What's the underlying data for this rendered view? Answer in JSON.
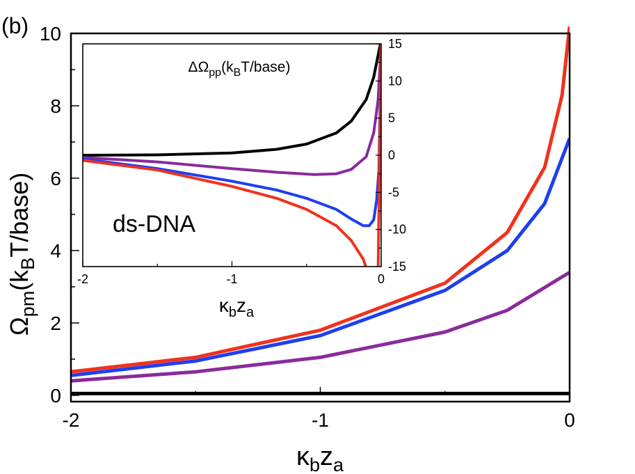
{
  "panel_label": "(b)",
  "annotation": "ds-DNA",
  "chart_data": [
    {
      "type": "line",
      "xlabel": {
        "base1": "κ",
        "sub1": "b",
        "base2": "z",
        "sub2": "a"
      },
      "ylabel": {
        "base": "Ω",
        "sub1": "pm",
        "mid": "(k",
        "sub2": "B",
        "end": "T/base)"
      },
      "xlim": [
        -2,
        0
      ],
      "ylim": [
        0,
        10
      ],
      "xticks": [
        "-2",
        "-1",
        "0"
      ],
      "yticks": [
        "0",
        "2",
        "4",
        "6",
        "8",
        "10"
      ],
      "grid": false,
      "series": [
        {
          "color": "#000000",
          "x": [
            -2,
            -1.5,
            -1,
            -0.5,
            0
          ],
          "y": [
            0.05,
            0.05,
            0.05,
            0.05,
            0.05
          ]
        },
        {
          "color": "#8b2a9c",
          "x": [
            -2,
            -1.5,
            -1,
            -0.5,
            -0.25,
            0
          ],
          "y": [
            0.4,
            0.65,
            1.05,
            1.75,
            2.35,
            3.4
          ]
        },
        {
          "color": "#1e3ff0",
          "x": [
            -2,
            -1.5,
            -1,
            -0.5,
            -0.25,
            -0.1,
            0
          ],
          "y": [
            0.55,
            0.95,
            1.65,
            2.9,
            4.0,
            5.3,
            7.1
          ]
        },
        {
          "color": "#f0321e",
          "x": [
            -2,
            -1.5,
            -1,
            -0.5,
            -0.25,
            -0.1,
            -0.03,
            0
          ],
          "y": [
            0.65,
            1.05,
            1.8,
            3.1,
            4.5,
            6.3,
            8.3,
            10.2
          ]
        }
      ]
    },
    {
      "type": "line",
      "title": {
        "pre": "ΔΩ",
        "sub1": "pp",
        "mid": "(k",
        "sub2": "B",
        "end": "T/base)"
      },
      "xlabel": {
        "base1": "κ",
        "sub1": "b",
        "base2": "z",
        "sub2": "a"
      },
      "xlim": [
        -2,
        0
      ],
      "ylim": [
        -15,
        15
      ],
      "xticks": [
        "-2",
        "-1",
        "0"
      ],
      "yticks": [
        "-15",
        "-10",
        "-5",
        "0",
        "5",
        "10",
        "15"
      ],
      "grid": false,
      "series": [
        {
          "color": "#000000",
          "x": [
            -2,
            -1.5,
            -1,
            -0.7,
            -0.5,
            -0.3,
            -0.2,
            -0.1,
            -0.05,
            0
          ],
          "y": [
            0,
            0.05,
            0.3,
            0.8,
            1.5,
            3.0,
            4.6,
            7.5,
            10.5,
            15.5
          ]
        },
        {
          "color": "#8b2a9c",
          "x": [
            -2,
            -1.5,
            -1,
            -0.7,
            -0.45,
            -0.3,
            -0.2,
            -0.1,
            -0.05,
            -0.02,
            0
          ],
          "y": [
            -0.3,
            -0.9,
            -1.8,
            -2.3,
            -2.6,
            -2.5,
            -1.9,
            -0.2,
            3.0,
            7.5,
            15
          ]
        },
        {
          "color": "#1e3ff0",
          "x": [
            -2,
            -1.5,
            -1,
            -0.7,
            -0.5,
            -0.3,
            -0.2,
            -0.12,
            -0.08,
            -0.05,
            -0.03,
            -0.015,
            0
          ],
          "y": [
            -0.5,
            -1.8,
            -3.5,
            -4.7,
            -5.8,
            -7.3,
            -8.6,
            -9.5,
            -9.5,
            -8.7,
            -6.0,
            -2.0,
            15
          ]
        },
        {
          "color": "#f0321e",
          "x": [
            -2,
            -1.5,
            -1,
            -0.7,
            -0.5,
            -0.3,
            -0.2,
            -0.12,
            -0.1,
            -0.06,
            -0.02,
            0
          ],
          "y": [
            -0.7,
            -2.0,
            -4.2,
            -5.8,
            -7.3,
            -9.5,
            -11.5,
            -14.0,
            -15.2,
            -15.2,
            -15.2,
            15
          ]
        }
      ]
    }
  ]
}
